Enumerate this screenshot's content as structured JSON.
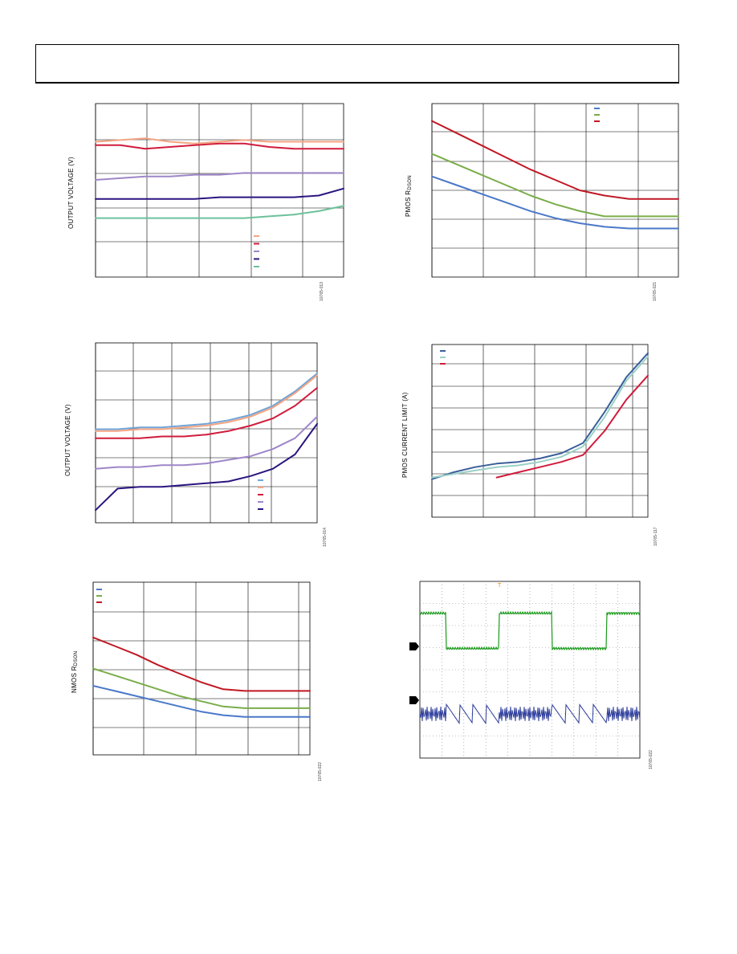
{
  "header": {},
  "panels": [
    {
      "id": "p1",
      "ylabel": "OUTPUT VOLTAGE (V)",
      "figure_id": "10765-013",
      "colors": [
        "#f4a582",
        "#d01c3c",
        "#9e86c8",
        "#2b1580",
        "#6cc19a"
      ]
    },
    {
      "id": "p2",
      "ylabel_main": "PMOS R",
      "ylabel_sub": "DSON",
      "figure_id": "10765-021",
      "colors": [
        "#4a78c8",
        "#7aad4a",
        "#c01824"
      ]
    },
    {
      "id": "p3",
      "ylabel": "OUTPUT VOLTAGE (V)",
      "figure_id": "10765-014",
      "colors": [
        "#6fa4d8",
        "#f4a582",
        "#d01c3c",
        "#9e86c8",
        "#2b1580"
      ]
    },
    {
      "id": "p4",
      "ylabel": "PMOS CURRENT LIMIT (A)",
      "figure_id": "10765-117",
      "colors": [
        "#3a5f9a",
        "#9bd0c6",
        "#d01c3c"
      ]
    },
    {
      "id": "p5",
      "ylabel_main": "NMOS R",
      "ylabel_sub": "DSON",
      "figure_id": "10765-022",
      "colors": [
        "#4a78c8",
        "#7aad4a",
        "#c01824"
      ]
    },
    {
      "id": "p6",
      "figure_id": "10765-022",
      "colors": [
        "#1a9a1a",
        "#2a3a9a"
      ],
      "trigger_marker": "T"
    }
  ],
  "chart_data": [
    {
      "type": "line",
      "title": "",
      "xlabel": "",
      "ylabel": "OUTPUT VOLTAGE (V)",
      "x": [
        0,
        0.1,
        0.2,
        0.3,
        0.4,
        0.5,
        0.6,
        0.7,
        0.8,
        0.9,
        1.0
      ],
      "series": [
        {
          "values": [
            0.78,
            0.79,
            0.8,
            0.78,
            0.77,
            0.78,
            0.79,
            0.78,
            0.78,
            0.78,
            0.78
          ]
        },
        {
          "values": [
            0.76,
            0.76,
            0.74,
            0.75,
            0.76,
            0.77,
            0.77,
            0.75,
            0.74,
            0.74,
            0.74
          ]
        },
        {
          "values": [
            0.56,
            0.57,
            0.58,
            0.58,
            0.59,
            0.59,
            0.6,
            0.6,
            0.6,
            0.6,
            0.6
          ]
        },
        {
          "values": [
            0.45,
            0.45,
            0.45,
            0.45,
            0.45,
            0.46,
            0.46,
            0.46,
            0.46,
            0.47,
            0.51
          ]
        },
        {
          "values": [
            0.34,
            0.34,
            0.34,
            0.34,
            0.34,
            0.34,
            0.34,
            0.35,
            0.36,
            0.38,
            0.41
          ]
        }
      ]
    },
    {
      "type": "line",
      "title": "",
      "xlabel": "",
      "ylabel": "PMOS RDSON",
      "x": [
        0,
        0.1,
        0.2,
        0.3,
        0.4,
        0.5,
        0.6,
        0.7,
        0.8,
        0.9,
        1.0
      ],
      "series": [
        {
          "values": [
            0.58,
            0.53,
            0.48,
            0.43,
            0.38,
            0.34,
            0.31,
            0.29,
            0.28,
            0.28,
            0.28
          ]
        },
        {
          "values": [
            0.71,
            0.65,
            0.59,
            0.53,
            0.47,
            0.42,
            0.38,
            0.35,
            0.35,
            0.35,
            0.35
          ]
        },
        {
          "values": [
            0.9,
            0.83,
            0.76,
            0.69,
            0.62,
            0.56,
            0.5,
            0.47,
            0.45,
            0.45,
            0.45
          ]
        }
      ]
    },
    {
      "type": "line",
      "title": "",
      "xlabel": "",
      "ylabel": "OUTPUT VOLTAGE (V)",
      "x": [
        0,
        0.1,
        0.2,
        0.3,
        0.4,
        0.5,
        0.6,
        0.7,
        0.8,
        0.9,
        1.0
      ],
      "series": [
        {
          "values": [
            0.52,
            0.52,
            0.53,
            0.53,
            0.54,
            0.55,
            0.57,
            0.6,
            0.65,
            0.73,
            0.83
          ]
        },
        {
          "values": [
            0.51,
            0.51,
            0.52,
            0.52,
            0.53,
            0.54,
            0.56,
            0.59,
            0.64,
            0.72,
            0.82
          ]
        },
        {
          "values": [
            0.47,
            0.47,
            0.47,
            0.48,
            0.48,
            0.49,
            0.51,
            0.54,
            0.58,
            0.65,
            0.75
          ]
        },
        {
          "values": [
            0.3,
            0.31,
            0.31,
            0.32,
            0.32,
            0.33,
            0.35,
            0.37,
            0.41,
            0.47,
            0.59
          ]
        },
        {
          "values": [
            0.07,
            0.19,
            0.2,
            0.2,
            0.21,
            0.22,
            0.23,
            0.26,
            0.3,
            0.38,
            0.55
          ]
        }
      ]
    },
    {
      "type": "line",
      "title": "",
      "xlabel": "",
      "ylabel": "PMOS CURRENT LIMIT (A)",
      "x": [
        0,
        0.1,
        0.2,
        0.3,
        0.4,
        0.5,
        0.6,
        0.7,
        0.8,
        0.9,
        1.0
      ],
      "series": [
        {
          "values": [
            0.22,
            0.26,
            0.29,
            0.31,
            0.32,
            0.34,
            0.37,
            0.43,
            0.61,
            0.81,
            0.95
          ]
        },
        {
          "values": [
            0.23,
            0.25,
            0.27,
            0.29,
            0.3,
            0.32,
            0.35,
            0.41,
            0.58,
            0.79,
            0.93
          ]
        },
        {
          "values": [
            null,
            null,
            null,
            0.23,
            0.26,
            0.29,
            0.32,
            0.36,
            0.5,
            0.68,
            0.82
          ]
        }
      ]
    },
    {
      "type": "line",
      "title": "",
      "xlabel": "",
      "ylabel": "NMOS RDSON",
      "x": [
        0,
        0.1,
        0.2,
        0.3,
        0.4,
        0.5,
        0.6,
        0.7,
        0.8,
        0.9,
        1.0
      ],
      "series": [
        {
          "values": [
            0.4,
            0.37,
            0.34,
            0.31,
            0.28,
            0.25,
            0.23,
            0.22,
            0.22,
            0.22,
            0.22
          ]
        },
        {
          "values": [
            0.5,
            0.46,
            0.42,
            0.38,
            0.34,
            0.31,
            0.28,
            0.27,
            0.27,
            0.27,
            0.27
          ]
        },
        {
          "values": [
            0.68,
            0.63,
            0.58,
            0.52,
            0.47,
            0.42,
            0.38,
            0.37,
            0.37,
            0.37,
            0.37
          ]
        }
      ]
    },
    {
      "type": "line",
      "title": "",
      "xlabel": "",
      "ylabel": "",
      "x": [
        0,
        0.1,
        0.2,
        0.3,
        0.4,
        0.5,
        0.6,
        0.7,
        0.8,
        0.9,
        1.0
      ],
      "series": [
        {
          "values": [
            0.82,
            0.82,
            0.62,
            0.62,
            0.82,
            0.82,
            0.82,
            0.62,
            0.62,
            0.82,
            0.82
          ]
        },
        {
          "values": [
            0.25,
            0.25,
            0.3,
            0.2,
            0.25,
            0.25,
            0.25,
            0.3,
            0.2,
            0.25,
            0.25
          ]
        }
      ]
    }
  ]
}
